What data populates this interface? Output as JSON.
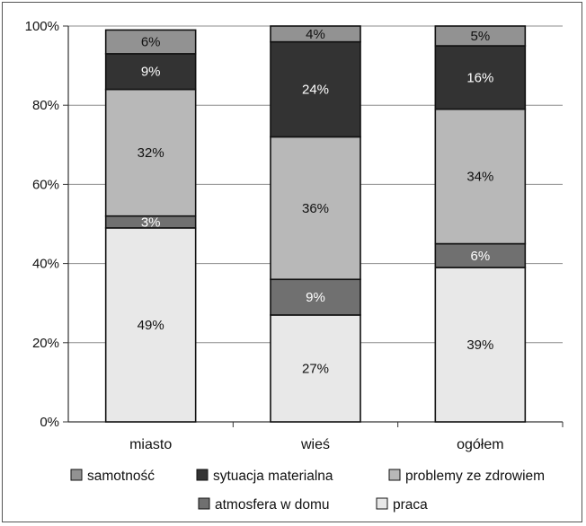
{
  "chart_data": {
    "type": "bar",
    "stacked": true,
    "categories": [
      "miasto",
      "wieś",
      "ogółem"
    ],
    "series": [
      {
        "name": "praca",
        "color": "#e8e8e8",
        "values": [
          49,
          27,
          39
        ],
        "labels": [
          "49%",
          "27%",
          "39%"
        ],
        "label_color": "#111111"
      },
      {
        "name": "atmosfera w domu",
        "color": "#707070",
        "values": [
          3,
          9,
          6
        ],
        "labels": [
          "3%",
          "9%",
          "6%"
        ],
        "label_color": "#ffffff"
      },
      {
        "name": "problemy ze zdrowiem",
        "color": "#b8b8b8",
        "values": [
          32,
          36,
          34
        ],
        "labels": [
          "32%",
          "36%",
          "34%"
        ],
        "label_color": "#111111"
      },
      {
        "name": "sytuacja materialna",
        "color": "#333333",
        "values": [
          9,
          24,
          16
        ],
        "labels": [
          "9%",
          "24%",
          "16%"
        ],
        "label_color": "#ffffff"
      },
      {
        "name": "samotność",
        "color": "#929292",
        "values": [
          6,
          4,
          5
        ],
        "labels": [
          "6%",
          "4%",
          "5%"
        ],
        "label_color": "#111111"
      }
    ],
    "y_ticks": [
      "0%",
      "20%",
      "40%",
      "60%",
      "80%",
      "100%"
    ],
    "ylim": [
      0,
      100
    ],
    "grid": true,
    "legend_position": "bottom",
    "legend_rows": [
      [
        "samotność",
        "sytuacja materialna",
        "problemy ze zdrowiem"
      ],
      [
        "atmosfera w domu",
        "praca"
      ]
    ]
  }
}
